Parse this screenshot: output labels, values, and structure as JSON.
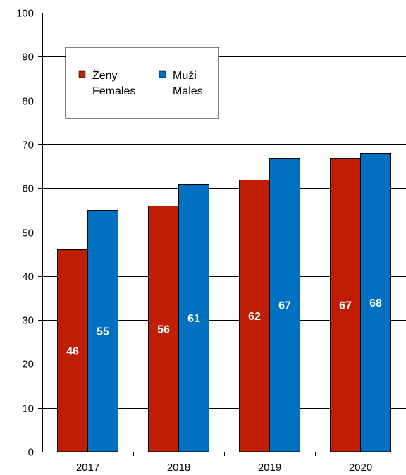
{
  "chart_data": {
    "type": "bar",
    "categories": [
      "2017",
      "2018",
      "2019",
      "2020"
    ],
    "series": [
      {
        "name": "Ženy\nFemales",
        "values": [
          46,
          56,
          62,
          67
        ],
        "data_labels": [
          "46",
          "56",
          "62",
          "67"
        ],
        "color": "#C01E04"
      },
      {
        "name": "Muži\nMales",
        "values": [
          55,
          61,
          67,
          68
        ],
        "data_labels": [
          "55",
          "61",
          "67",
          "68"
        ],
        "color": "#0070C0"
      }
    ],
    "legend": {
      "entries": [
        {
          "line1": "Ženy",
          "line2": "Females"
        },
        {
          "line1": "Muži",
          "line2": "Males"
        }
      ],
      "placement": "top-left"
    },
    "ylim": [
      0,
      100
    ],
    "yticks": [
      0,
      10,
      20,
      30,
      40,
      50,
      60,
      70,
      80,
      90,
      100
    ],
    "grid": true,
    "title": "",
    "xlabel": "",
    "ylabel": ""
  }
}
